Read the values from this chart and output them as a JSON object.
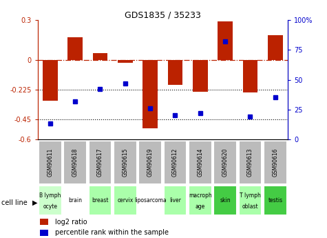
{
  "title": "GDS1835 / 35233",
  "samples": [
    "GSM90611",
    "GSM90618",
    "GSM90617",
    "GSM90615",
    "GSM90619",
    "GSM90612",
    "GSM90614",
    "GSM90620",
    "GSM90613",
    "GSM90616"
  ],
  "cell_lines": [
    "B lymph\nocyte",
    "brain",
    "breast",
    "cervix",
    "liposarcoma\n",
    "liver",
    "macroph\nage",
    "skin",
    "T lymph\noblast",
    "testis"
  ],
  "cell_line_colors": [
    "#ccffcc",
    "#ffffff",
    "#aaddaa",
    "#aaddaa",
    "#ffffff",
    "#aaddaa",
    "#aaddaa",
    "#55cc55",
    "#aaddaa",
    "#55cc55"
  ],
  "log2_ratio": [
    -0.31,
    0.17,
    0.05,
    -0.02,
    -0.52,
    -0.19,
    -0.24,
    0.29,
    -0.245,
    0.185
  ],
  "percentile_rank": [
    13,
    32,
    42,
    47,
    26,
    20,
    22,
    82,
    19,
    35
  ],
  "ylim_left": [
    -0.6,
    0.3
  ],
  "ylim_right": [
    0,
    100
  ],
  "yticks_left": [
    -0.6,
    -0.45,
    -0.225,
    0,
    0.3
  ],
  "ytick_labels_left": [
    "-0.6",
    "-0.45",
    "-0.225",
    "0",
    "0.3"
  ],
  "yticks_right": [
    0,
    25,
    50,
    75,
    100
  ],
  "ytick_labels_right": [
    "0",
    "25",
    "50",
    "75",
    "100%"
  ],
  "hlines": [
    -0.225,
    -0.45
  ],
  "zero_line": 0,
  "bar_color": "#bb2200",
  "dot_color": "#0000cc",
  "bar_width": 0.6,
  "legend_bar_label": "log2 ratio",
  "legend_dot_label": "percentile rank within the sample",
  "cell_line_label": "cell line",
  "sample_box_color": "#bbbbbb"
}
